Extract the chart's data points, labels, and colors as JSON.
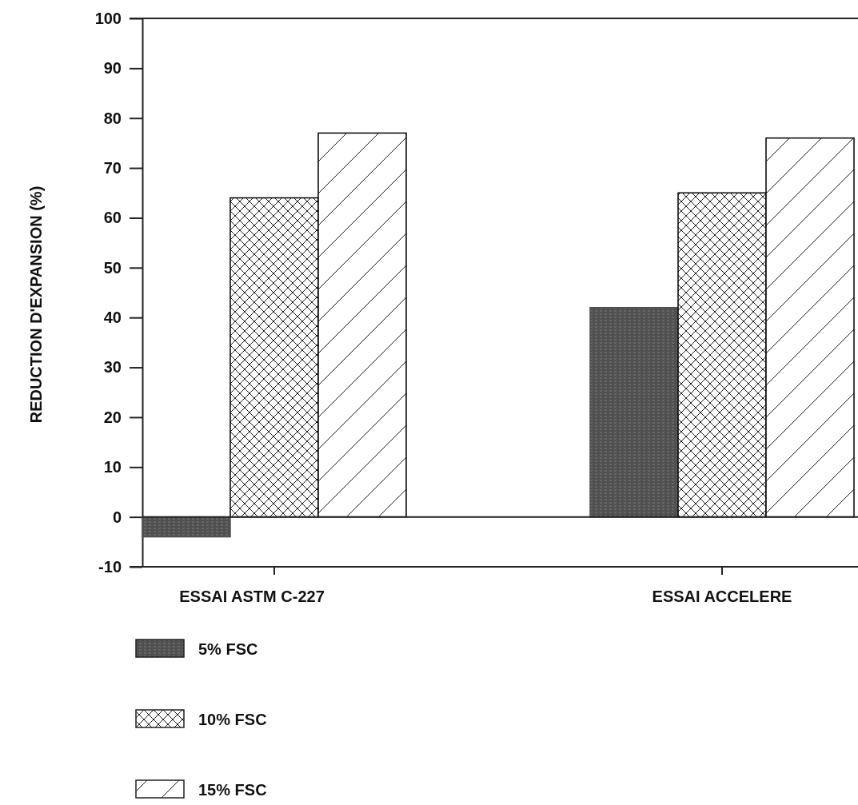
{
  "chart_data": {
    "type": "bar",
    "ylabel": "REDUCTION D'EXPANSION (%)",
    "categories": [
      "ESSAI ASTM C-227",
      "ESSAI ACCELERE"
    ],
    "series": [
      {
        "name": "5% FSC",
        "color": "#505050",
        "values": [
          -4,
          42
        ]
      },
      {
        "name": "10% FSC",
        "color": "#000000",
        "values": [
          64,
          65
        ]
      },
      {
        "name": "15% FSC",
        "color": "#000000",
        "values": [
          77,
          76
        ]
      }
    ],
    "ylim": [
      -10,
      100
    ],
    "yticks": [
      -10,
      0,
      10,
      20,
      30,
      40,
      50,
      60,
      70,
      80,
      90,
      100
    ],
    "legend": "bottom left"
  }
}
